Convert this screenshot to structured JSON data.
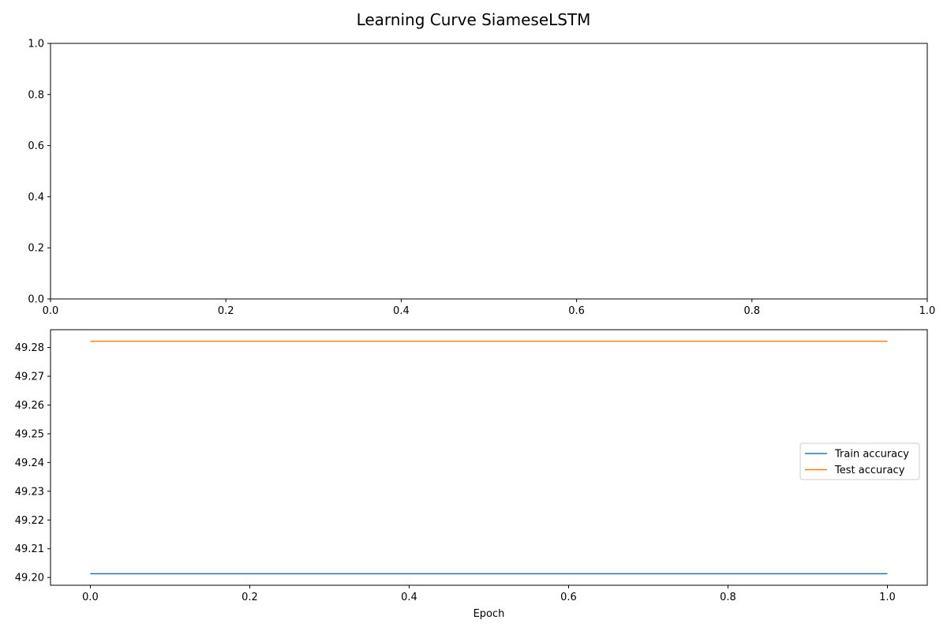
{
  "figure": {
    "title": "Learning Curve SiameseLSTM"
  },
  "chart_data": [
    {
      "type": "line",
      "panel": "top",
      "x": [],
      "series": [],
      "xlabel": "",
      "ylabel": "",
      "xlim": [
        0.0,
        1.0
      ],
      "ylim": [
        0.0,
        1.0
      ],
      "xticks": [
        "0.0",
        "0.2",
        "0.4",
        "0.6",
        "0.8",
        "1.0"
      ],
      "yticks": [
        "0.0",
        "0.2",
        "0.4",
        "0.6",
        "0.8",
        "1.0"
      ],
      "grid": false
    },
    {
      "type": "line",
      "panel": "bottom",
      "x": [
        0.0,
        1.0
      ],
      "series": [
        {
          "name": "Train accuracy",
          "values": [
            49.2013,
            49.2013
          ],
          "color": "#1f77b4"
        },
        {
          "name": "Test accuracy",
          "values": [
            49.2822,
            49.2822
          ],
          "color": "#ff7f0e"
        }
      ],
      "xlabel": "Epoch",
      "ylabel": "",
      "xlim": [
        -0.05,
        1.05
      ],
      "ylim": [
        49.1973,
        49.2862
      ],
      "xticks": [
        "0.0",
        "0.2",
        "0.4",
        "0.6",
        "0.8",
        "1.0"
      ],
      "yticks": [
        "49.20",
        "49.21",
        "49.22",
        "49.23",
        "49.24",
        "49.25",
        "49.26",
        "49.27",
        "49.28"
      ],
      "legend": "center-right",
      "grid": false
    }
  ]
}
